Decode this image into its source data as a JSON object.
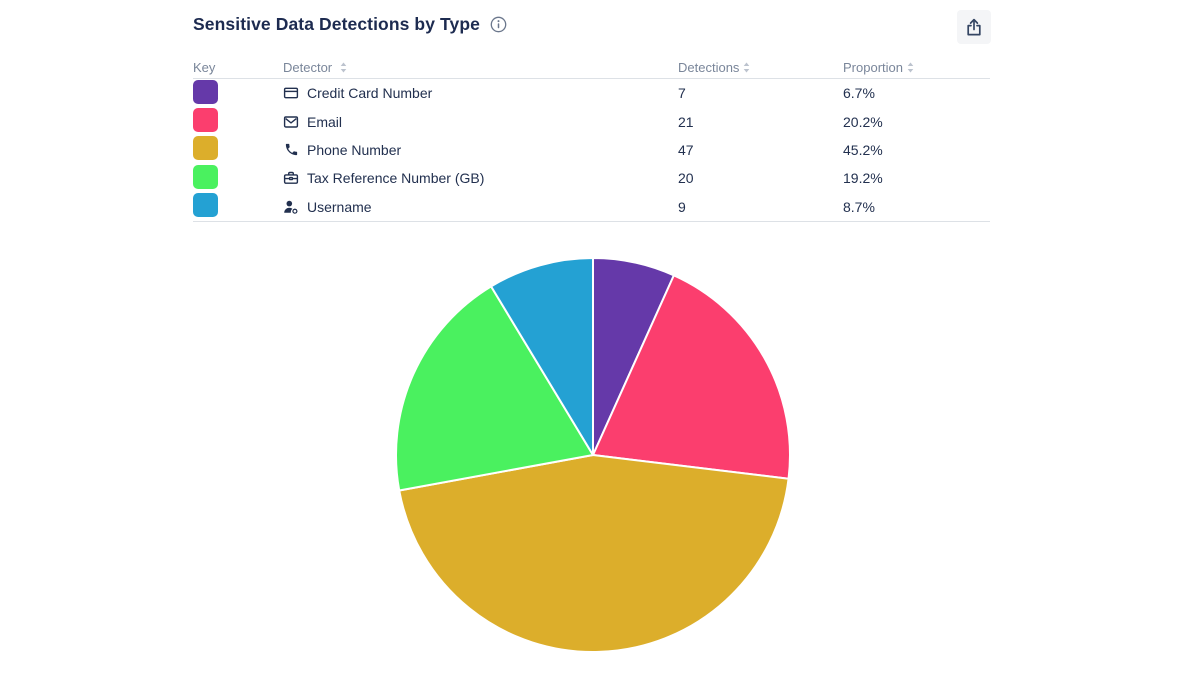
{
  "title": "Sensitive Data Detections by Type",
  "header_icons": {
    "info": "info-icon",
    "share": "share-icon"
  },
  "table": {
    "headers": {
      "key": "Key",
      "detector": "Detector",
      "detections": "Detections",
      "proportion": "Proportion"
    },
    "sortable_columns": [
      "detector",
      "detections",
      "proportion"
    ],
    "rows": [
      {
        "color": "#6539a9",
        "icon": "credit-card",
        "detector": "Credit Card Number",
        "detections": "7",
        "proportion": "6.7%"
      },
      {
        "color": "#fb3e6e",
        "icon": "email",
        "detector": "Email",
        "detections": "21",
        "proportion": "20.2%"
      },
      {
        "color": "#dcae2b",
        "icon": "phone",
        "detector": "Phone Number",
        "detections": "47",
        "proportion": "45.2%"
      },
      {
        "color": "#4af15f",
        "icon": "briefcase",
        "detector": "Tax Reference Number (GB)",
        "detections": "20",
        "proportion": "19.2%"
      },
      {
        "color": "#24a1d3",
        "icon": "user-gear",
        "detector": "Username",
        "detections": "9",
        "proportion": "8.7%"
      }
    ]
  },
  "chart_data": {
    "type": "pie",
    "title": "Sensitive Data Detections by Type",
    "categories": [
      "Credit Card Number",
      "Email",
      "Phone Number",
      "Tax Reference Number (GB)",
      "Username"
    ],
    "values": [
      7,
      21,
      47,
      20,
      9
    ],
    "proportions_pct": [
      6.7,
      20.2,
      45.2,
      19.2,
      8.7
    ],
    "colors": [
      "#6539a9",
      "#fb3e6e",
      "#dcae2b",
      "#4af15f",
      "#24a1d3"
    ],
    "start_angle_deg": 0,
    "direction": "clockwise",
    "slice_stroke": "#ffffff",
    "legend_position": "table-above"
  },
  "colors": {
    "text_primary": "#1d2b50",
    "text_header": "#7a869a",
    "border": "#dde1e6",
    "button_bg": "#f4f5f7"
  }
}
